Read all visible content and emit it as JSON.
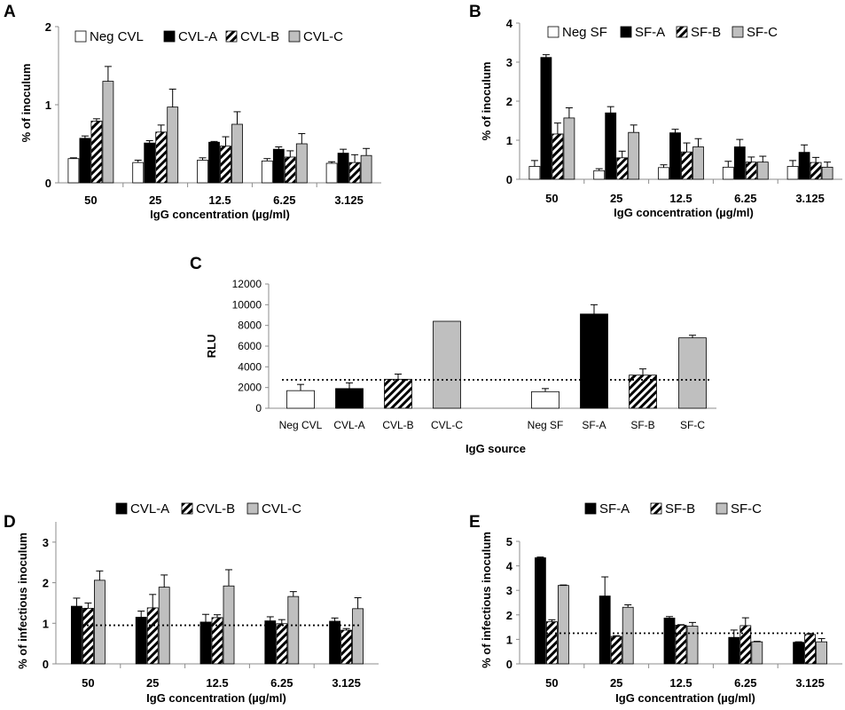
{
  "colors": {
    "black": "#000000",
    "gray": "#bfbfbf",
    "white": "#ffffff",
    "hatch": "diagonal-hatch"
  },
  "chart_data": [
    {
      "id": "A",
      "panel_label": "A",
      "type": "bar",
      "xlabel": "IgG concentration (µg/ml)",
      "ylabel": "% of inoculum",
      "ylim": [
        0,
        2
      ],
      "yticks": [
        "0",
        "1",
        "2"
      ],
      "categories": [
        "50",
        "25",
        "12.5",
        "6.25",
        "3.125"
      ],
      "series": [
        {
          "name": "Neg CVL",
          "fill": "white",
          "values": [
            0.31,
            0.26,
            0.29,
            0.28,
            0.25
          ],
          "errors": [
            0.01,
            0.03,
            0.03,
            0.03,
            0.02
          ]
        },
        {
          "name": "CVL-A",
          "fill": "black",
          "values": [
            0.57,
            0.51,
            0.52,
            0.43,
            0.38
          ],
          "errors": [
            0.03,
            0.03,
            0.01,
            0.03,
            0.05
          ]
        },
        {
          "name": "CVL-B",
          "fill": "hatch",
          "values": [
            0.79,
            0.65,
            0.47,
            0.33,
            0.26
          ],
          "errors": [
            0.03,
            0.09,
            0.12,
            0.08,
            0.1
          ]
        },
        {
          "name": "CVL-C",
          "fill": "gray",
          "values": [
            1.3,
            0.97,
            0.75,
            0.5,
            0.35
          ],
          "errors": [
            0.19,
            0.23,
            0.16,
            0.13,
            0.09
          ]
        }
      ]
    },
    {
      "id": "B",
      "panel_label": "B",
      "type": "bar",
      "xlabel": "IgG concentration (µg/ml)",
      "ylabel": "% of inoculum",
      "ylim": [
        0,
        4
      ],
      "yticks": [
        "0",
        "1",
        "2",
        "3",
        "4"
      ],
      "categories": [
        "50",
        "25",
        "12.5",
        "6.25",
        "3.125"
      ],
      "series": [
        {
          "name": "Neg SF",
          "fill": "white",
          "values": [
            0.33,
            0.22,
            0.3,
            0.31,
            0.33
          ],
          "errors": [
            0.15,
            0.05,
            0.07,
            0.15,
            0.15
          ]
        },
        {
          "name": "SF-A",
          "fill": "black",
          "values": [
            3.12,
            1.7,
            1.19,
            0.83,
            0.69
          ],
          "errors": [
            0.07,
            0.16,
            0.09,
            0.19,
            0.19
          ]
        },
        {
          "name": "SF-B",
          "fill": "hatch",
          "values": [
            1.16,
            0.55,
            0.7,
            0.44,
            0.43
          ],
          "errors": [
            0.28,
            0.17,
            0.23,
            0.13,
            0.13
          ]
        },
        {
          "name": "SF-C",
          "fill": "gray",
          "values": [
            1.57,
            1.2,
            0.83,
            0.44,
            0.31
          ],
          "errors": [
            0.26,
            0.19,
            0.21,
            0.15,
            0.13
          ]
        }
      ]
    },
    {
      "id": "C",
      "panel_label": "C",
      "type": "bar",
      "xlabel": "IgG source",
      "ylabel": "RLU",
      "ylim": [
        0,
        12000
      ],
      "yticks": [
        "0",
        "2000",
        "4000",
        "6000",
        "8000",
        "10000",
        "12000"
      ],
      "categories": [
        "Neg CVL",
        "CVL-A",
        "CVL-B",
        "CVL-C",
        "Neg SF",
        "SF-A",
        "SF-B",
        "SF-C"
      ],
      "fills": [
        "white",
        "black",
        "hatch",
        "gray",
        "white",
        "black",
        "hatch",
        "gray"
      ],
      "values": [
        1700,
        1900,
        2800,
        8400,
        1600,
        9100,
        3200,
        6800
      ],
      "errors": [
        600,
        550,
        500,
        0,
        300,
        900,
        600,
        250
      ],
      "reference_line": 2750
    },
    {
      "id": "D",
      "panel_label": "D",
      "type": "bar",
      "xlabel": "IgG concentration (µg/ml)",
      "ylabel": "% of infectious inoculum",
      "ylim": [
        0,
        3.5
      ],
      "yticks": [
        "0",
        "1",
        "2",
        "3"
      ],
      "categories": [
        "50",
        "25",
        "12.5",
        "6.25",
        "3.125"
      ],
      "series": [
        {
          "name": "CVL-A",
          "fill": "black",
          "values": [
            1.42,
            1.15,
            1.03,
            1.06,
            1.05
          ],
          "errors": [
            0.2,
            0.15,
            0.19,
            0.1,
            0.08
          ]
        },
        {
          "name": "CVL-B",
          "fill": "hatch",
          "values": [
            1.37,
            1.38,
            1.14,
            0.99,
            0.83
          ],
          "errors": [
            0.13,
            0.33,
            0.07,
            0.1,
            0.04
          ]
        },
        {
          "name": "CVL-C",
          "fill": "gray",
          "values": [
            2.06,
            1.89,
            1.92,
            1.66,
            1.36
          ],
          "errors": [
            0.23,
            0.3,
            0.4,
            0.12,
            0.27
          ]
        }
      ],
      "reference_line": 0.95
    },
    {
      "id": "E",
      "panel_label": "E",
      "type": "bar",
      "xlabel": "IgG concentration (µg/ml)",
      "ylabel": "% of infectious inoculum",
      "ylim": [
        0,
        5
      ],
      "yticks": [
        "0",
        "1",
        "2",
        "3",
        "4",
        "5"
      ],
      "categories": [
        "50",
        "25",
        "12.5",
        "6.25",
        "3.125"
      ],
      "series": [
        {
          "name": "SF-A",
          "fill": "black",
          "values": [
            4.33,
            2.77,
            1.87,
            1.08,
            0.88
          ],
          "errors": [
            0.03,
            0.78,
            0.06,
            0.3,
            0.02
          ]
        },
        {
          "name": "SF-B",
          "fill": "hatch",
          "values": [
            1.72,
            1.12,
            1.58,
            1.56,
            1.2
          ],
          "errors": [
            0.08,
            0.03,
            0.02,
            0.32,
            0.04
          ]
        },
        {
          "name": "SF-C",
          "fill": "gray",
          "values": [
            3.2,
            2.31,
            1.54,
            0.9,
            0.9
          ],
          "errors": [
            0.02,
            0.1,
            0.15,
            0.02,
            0.13
          ]
        }
      ],
      "reference_line": 1.25
    }
  ]
}
